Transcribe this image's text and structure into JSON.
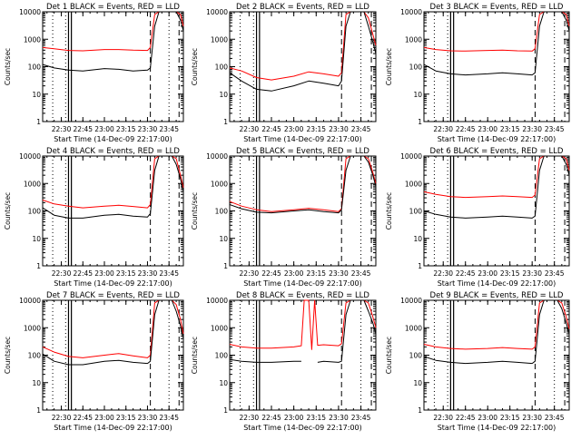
{
  "chart_data": {
    "type": "line",
    "y_axis": {
      "label": "Counts/sec",
      "scale": "log",
      "ylim": [
        1,
        10000
      ],
      "ticks": [
        1,
        10,
        100,
        1000,
        10000
      ],
      "tick_labels": [
        "1",
        "10",
        "100",
        "1000",
        "10000"
      ]
    },
    "x_axis": {
      "label": "Start Time (14-Dec-09 22:17:00)",
      "xlim": [
        "22:17",
        "23:55"
      ],
      "ticks": [
        "22:30",
        "22:45",
        "23:00",
        "23:15",
        "23:30",
        "23:45"
      ]
    },
    "line_colors": {
      "events": "#000000",
      "lld": "#ff0000"
    },
    "markers": {
      "solid": [
        "22:35",
        "22:37"
      ],
      "dashed": [
        "23:32",
        "23:52"
      ],
      "dotted": [
        "22:24",
        "22:33",
        "23:45"
      ]
    },
    "panels": [
      {
        "title": "Det 1 BLACK = Events, RED = LLD",
        "x": [
          "22:17",
          "22:25",
          "22:35",
          "22:45",
          "23:00",
          "23:10",
          "23:20",
          "23:30",
          "23:32",
          "23:35",
          "23:38",
          "23:41",
          "23:43",
          "23:45",
          "23:47",
          "23:50",
          "23:53",
          "23:55"
        ],
        "events": [
          120,
          90,
          75,
          70,
          85,
          80,
          70,
          75,
          90,
          3000,
          10000,
          10000,
          10000,
          10000,
          10000,
          10000,
          5000,
          2000
        ],
        "lld": [
          500,
          450,
          390,
          380,
          420,
          420,
          400,
          390,
          500,
          8000,
          10000,
          10000,
          10000,
          10000,
          10000,
          10000,
          8000,
          3000
        ]
      },
      {
        "title": "Det 2 BLACK = Events, RED = LLD",
        "x": [
          "22:17",
          "22:25",
          "22:35",
          "22:45",
          "23:00",
          "23:10",
          "23:20",
          "23:30",
          "23:32",
          "23:35",
          "23:38",
          "23:41",
          "23:43",
          "23:45",
          "23:47",
          "23:50",
          "23:53",
          "23:55"
        ],
        "events": [
          60,
          30,
          15,
          13,
          20,
          30,
          25,
          20,
          30,
          3000,
          10000,
          10000,
          10000,
          10000,
          10000,
          3000,
          800,
          300
        ],
        "lld": [
          90,
          70,
          40,
          33,
          45,
          65,
          55,
          45,
          60,
          8000,
          10000,
          10000,
          10000,
          10000,
          10000,
          6000,
          1500,
          600
        ]
      },
      {
        "title": "Det 3 BLACK = Events, RED = LLD",
        "x": [
          "22:17",
          "22:25",
          "22:35",
          "22:45",
          "23:00",
          "23:10",
          "23:20",
          "23:30",
          "23:32",
          "23:35",
          "23:38",
          "23:41",
          "23:43",
          "23:45",
          "23:47",
          "23:50",
          "23:53",
          "23:55"
        ],
        "events": [
          120,
          70,
          55,
          50,
          55,
          60,
          55,
          50,
          60,
          3000,
          10000,
          10000,
          10000,
          10000,
          10000,
          10000,
          5000,
          2000
        ],
        "lld": [
          500,
          420,
          380,
          370,
          390,
          400,
          380,
          370,
          450,
          8000,
          10000,
          10000,
          10000,
          10000,
          10000,
          10000,
          8000,
          3000
        ]
      },
      {
        "title": "Det 4 BLACK = Events, RED = LLD",
        "x": [
          "22:17",
          "22:25",
          "22:35",
          "22:45",
          "23:00",
          "23:10",
          "23:20",
          "23:30",
          "23:32",
          "23:35",
          "23:38",
          "23:41",
          "23:43",
          "23:45",
          "23:47",
          "23:50",
          "23:53",
          "23:55"
        ],
        "events": [
          130,
          70,
          55,
          55,
          70,
          75,
          65,
          60,
          80,
          3000,
          10000,
          10000,
          10000,
          10000,
          10000,
          5000,
          1500,
          500
        ],
        "lld": [
          250,
          180,
          150,
          130,
          150,
          160,
          145,
          130,
          170,
          8000,
          10000,
          10000,
          10000,
          10000,
          10000,
          8000,
          2000,
          700
        ]
      },
      {
        "title": "Det 5 BLACK = Events, RED = LLD",
        "x": [
          "22:17",
          "22:25",
          "22:35",
          "22:45",
          "23:00",
          "23:10",
          "23:20",
          "23:30",
          "23:32",
          "23:35",
          "23:38",
          "23:41",
          "23:43",
          "23:45",
          "23:47",
          "23:50",
          "23:53",
          "23:55"
        ],
        "events": [
          170,
          120,
          90,
          85,
          100,
          110,
          95,
          85,
          110,
          3000,
          10000,
          10000,
          10000,
          10000,
          10000,
          6000,
          2000,
          800
        ],
        "lld": [
          220,
          150,
          110,
          95,
          110,
          125,
          110,
          95,
          120,
          8000,
          10000,
          10000,
          10000,
          10000,
          10000,
          8000,
          2500,
          1000
        ]
      },
      {
        "title": "Det 6 BLACK = Events, RED = LLD",
        "x": [
          "22:17",
          "22:25",
          "22:35",
          "22:45",
          "23:00",
          "23:10",
          "23:20",
          "23:30",
          "23:32",
          "23:35",
          "23:38",
          "23:41",
          "23:43",
          "23:45",
          "23:47",
          "23:50",
          "23:53",
          "23:55"
        ],
        "events": [
          100,
          75,
          60,
          55,
          60,
          65,
          60,
          55,
          65,
          3000,
          10000,
          10000,
          10000,
          10000,
          10000,
          10000,
          5000,
          2000
        ],
        "lld": [
          500,
          400,
          330,
          310,
          330,
          350,
          330,
          310,
          380,
          8000,
          10000,
          10000,
          10000,
          10000,
          10000,
          10000,
          8000,
          3000
        ]
      },
      {
        "title": "Det 7 BLACK = Events, RED = LLD",
        "x": [
          "22:17",
          "22:25",
          "22:35",
          "22:45",
          "23:00",
          "23:10",
          "23:20",
          "23:30",
          "23:32",
          "23:35",
          "23:38",
          "23:41",
          "23:43",
          "23:45",
          "23:47",
          "23:50",
          "23:53",
          "23:55"
        ],
        "events": [
          110,
          60,
          45,
          45,
          60,
          65,
          55,
          50,
          60,
          3000,
          10000,
          10000,
          10000,
          10000,
          10000,
          4000,
          1200,
          400
        ],
        "lld": [
          200,
          130,
          90,
          80,
          100,
          115,
          95,
          80,
          100,
          8000,
          10000,
          10000,
          10000,
          10000,
          10000,
          7000,
          2000,
          600
        ]
      },
      {
        "title": "Det 8 BLACK = Events, RED = LLD",
        "x": [
          "22:17",
          "22:25",
          "22:35",
          "22:45",
          "23:00",
          "23:05",
          "23:07",
          "23:10",
          "23:12",
          "23:14",
          "23:16",
          "23:20",
          "23:30",
          "23:32",
          "23:35",
          "23:38",
          "23:41",
          "23:43",
          "23:45",
          "23:47",
          "23:50",
          "23:53",
          "23:55"
        ],
        "events": [
          70,
          60,
          55,
          55,
          60,
          60,
          null,
          null,
          45,
          null,
          55,
          60,
          55,
          60,
          3000,
          10000,
          10000,
          10000,
          10000,
          10000,
          4000,
          1500,
          600
        ],
        "lld": [
          250,
          200,
          180,
          180,
          200,
          220,
          10000,
          10000,
          160,
          10000,
          230,
          240,
          220,
          260,
          8000,
          10000,
          10000,
          10000,
          10000,
          10000,
          8000,
          2500,
          1000
        ]
      },
      {
        "title": "Det 9 BLACK = Events, RED = LLD",
        "x": [
          "22:17",
          "22:25",
          "22:35",
          "22:45",
          "23:00",
          "23:10",
          "23:20",
          "23:30",
          "23:32",
          "23:35",
          "23:38",
          "23:41",
          "23:43",
          "23:45",
          "23:47",
          "23:50",
          "23:53",
          "23:55"
        ],
        "events": [
          90,
          65,
          55,
          50,
          55,
          60,
          55,
          50,
          60,
          3000,
          10000,
          10000,
          10000,
          10000,
          10000,
          5000,
          1500,
          600
        ],
        "lld": [
          250,
          200,
          175,
          165,
          175,
          190,
          175,
          165,
          200,
          8000,
          10000,
          10000,
          10000,
          10000,
          10000,
          8000,
          2500,
          900
        ]
      }
    ]
  }
}
